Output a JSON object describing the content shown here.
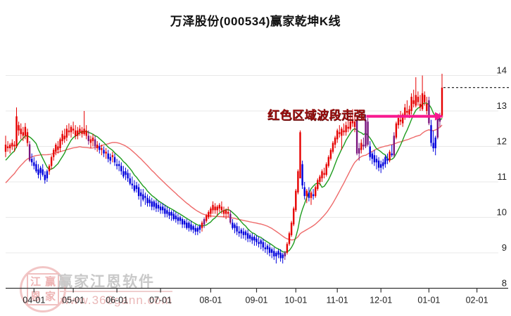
{
  "title": "万泽股份(000534)赢家乾坤K线",
  "annotation": {
    "text": "红色区域波段走强",
    "color": "#9b0f0f"
  },
  "watermark": {
    "brand": "赢家江恩软件",
    "url": "www.360gann.com",
    "seal_chars": [
      "江",
      "赢",
      "恩",
      "家"
    ]
  },
  "axes": {
    "y_ticks": [
      14,
      13,
      12,
      11,
      10,
      9,
      8
    ],
    "x_ticks": [
      {
        "label": "04-01",
        "i": 13
      },
      {
        "label": "05-01",
        "i": 31
      },
      {
        "label": "06-01",
        "i": 51
      },
      {
        "label": "07-01",
        "i": 71
      },
      {
        "label": "08-01",
        "i": 94
      },
      {
        "label": "09-01",
        "i": 115
      },
      {
        "label": "10-01",
        "i": 133
      },
      {
        "label": "11-01",
        "i": 152
      },
      {
        "label": "12-01",
        "i": 172
      },
      {
        "label": "01-01",
        "i": 194
      },
      {
        "label": "02-01",
        "i": 216
      }
    ]
  },
  "chart_data": {
    "type": "candlestick",
    "title": "万泽股份(000534)赢家乾坤K线",
    "ylim": [
      8,
      14
    ],
    "x_range_labels": [
      "04-01",
      "05-01",
      "06-01",
      "07-01",
      "08-01",
      "09-01",
      "10-01",
      "11-01",
      "12-01",
      "01-01",
      "02-01"
    ],
    "legend": "none",
    "grid": "horizontal",
    "colors": {
      "up": "#e60000",
      "down": "#0000dd",
      "transition": "#7a157f",
      "ma_short": "#1e9c1e",
      "ma_long": "#ee6a6a",
      "resistance": "#f8188f",
      "last_price": "#111111",
      "grid_line": "#e8e8e8",
      "axis": "#333333",
      "label": "#222222"
    },
    "candles": [
      [
        11.85,
        12.3,
        11.7,
        12.05,
        "r"
      ],
      [
        12.0,
        12.15,
        11.85,
        11.95,
        "r"
      ],
      [
        11.95,
        12.1,
        11.8,
        12.05,
        "r"
      ],
      [
        12.0,
        12.2,
        11.9,
        12.1,
        "r"
      ],
      [
        12.05,
        12.15,
        11.85,
        12.0,
        "r"
      ],
      [
        12.0,
        13.1,
        11.95,
        12.85,
        "r"
      ],
      [
        12.45,
        12.7,
        12.3,
        12.6,
        "r"
      ],
      [
        12.35,
        12.65,
        12.2,
        12.5,
        "r"
      ],
      [
        12.4,
        12.55,
        12.15,
        12.3,
        "r"
      ],
      [
        12.3,
        12.66,
        12.2,
        12.55,
        "r"
      ],
      [
        12.4,
        12.5,
        12.0,
        12.1,
        "r"
      ],
      [
        12.06,
        12.15,
        11.56,
        11.6,
        "p"
      ],
      [
        11.65,
        11.8,
        11.45,
        11.55,
        "b"
      ],
      [
        11.55,
        11.7,
        11.35,
        11.45,
        "b"
      ],
      [
        11.5,
        11.6,
        11.25,
        11.3,
        "b"
      ],
      [
        11.35,
        11.5,
        11.1,
        11.2,
        "b"
      ],
      [
        11.25,
        11.45,
        11.05,
        11.4,
        "b"
      ],
      [
        11.35,
        11.5,
        11.15,
        11.2,
        "b"
      ],
      [
        11.2,
        11.3,
        10.95,
        11.05,
        "b"
      ],
      [
        11.1,
        11.35,
        11.0,
        11.3,
        "b"
      ],
      [
        11.3,
        11.5,
        11.2,
        11.45,
        "r"
      ],
      [
        11.45,
        11.75,
        11.35,
        11.7,
        "r"
      ],
      [
        11.7,
        11.95,
        11.6,
        11.9,
        "r"
      ],
      [
        11.85,
        12.1,
        11.75,
        12.05,
        "r"
      ],
      [
        12.0,
        12.15,
        11.8,
        11.9,
        "r"
      ],
      [
        11.95,
        12.25,
        11.85,
        12.2,
        "r"
      ],
      [
        12.15,
        12.45,
        12.05,
        12.35,
        "r"
      ],
      [
        12.3,
        12.5,
        12.1,
        12.2,
        "r"
      ],
      [
        12.25,
        12.6,
        12.15,
        12.5,
        "r"
      ],
      [
        12.45,
        12.65,
        12.3,
        12.4,
        "r"
      ],
      [
        12.4,
        12.6,
        12.25,
        12.55,
        "r"
      ],
      [
        12.5,
        12.7,
        12.35,
        12.45,
        "r"
      ],
      [
        12.45,
        12.6,
        12.2,
        12.3,
        "r"
      ],
      [
        12.3,
        12.55,
        12.2,
        12.45,
        "r"
      ],
      [
        12.4,
        12.6,
        12.3,
        12.5,
        "r"
      ],
      [
        12.45,
        12.55,
        12.25,
        12.35,
        "r"
      ],
      [
        12.35,
        13.0,
        12.3,
        12.5,
        "r"
      ],
      [
        12.45,
        12.6,
        12.2,
        12.3,
        "r"
      ],
      [
        12.3,
        12.45,
        12.05,
        12.15,
        "p"
      ],
      [
        12.1,
        12.3,
        11.95,
        12.2,
        "r"
      ],
      [
        12.15,
        12.35,
        12.0,
        12.25,
        "r"
      ],
      [
        12.2,
        12.3,
        11.9,
        12.0,
        "p"
      ],
      [
        11.95,
        12.15,
        11.85,
        12.05,
        "r"
      ],
      [
        12.0,
        12.1,
        11.8,
        11.9,
        "b"
      ],
      [
        11.9,
        12.05,
        11.75,
        11.95,
        "r"
      ],
      [
        11.9,
        12.0,
        11.7,
        11.8,
        "b"
      ],
      [
        11.8,
        11.95,
        11.65,
        11.85,
        "r"
      ],
      [
        11.8,
        11.9,
        11.55,
        11.65,
        "b"
      ],
      [
        11.6,
        11.8,
        11.5,
        11.7,
        "b"
      ],
      [
        11.7,
        11.85,
        11.55,
        11.75,
        "r"
      ],
      [
        11.7,
        11.8,
        11.45,
        11.55,
        "b"
      ],
      [
        11.5,
        11.65,
        11.35,
        11.45,
        "b"
      ],
      [
        11.45,
        11.6,
        11.3,
        11.5,
        "b"
      ],
      [
        11.45,
        11.55,
        11.2,
        11.3,
        "b"
      ],
      [
        11.3,
        11.45,
        11.1,
        11.15,
        "b"
      ],
      [
        11.2,
        11.4,
        11.05,
        11.3,
        "b"
      ],
      [
        11.25,
        11.35,
        11.0,
        11.1,
        "b"
      ],
      [
        11.1,
        11.25,
        10.9,
        10.95,
        "b"
      ],
      [
        10.95,
        11.15,
        10.8,
        10.9,
        "b"
      ],
      [
        10.9,
        11.05,
        10.7,
        10.75,
        "b"
      ],
      [
        10.8,
        11.0,
        10.7,
        10.9,
        "b"
      ],
      [
        10.85,
        10.95,
        10.5,
        10.6,
        "b"
      ],
      [
        10.6,
        10.8,
        10.3,
        10.7,
        "b"
      ],
      [
        10.65,
        10.8,
        10.45,
        10.5,
        "b"
      ],
      [
        10.55,
        10.7,
        10.35,
        10.6,
        "b"
      ],
      [
        10.55,
        10.65,
        10.3,
        10.4,
        "b"
      ],
      [
        10.4,
        10.6,
        10.3,
        10.5,
        "b"
      ],
      [
        10.45,
        10.55,
        10.2,
        10.3,
        "b"
      ],
      [
        10.3,
        10.5,
        10.2,
        10.45,
        "b"
      ],
      [
        10.4,
        10.5,
        10.15,
        10.25,
        "b"
      ],
      [
        10.25,
        10.45,
        10.15,
        10.35,
        "b"
      ],
      [
        10.3,
        10.4,
        10.1,
        10.2,
        "b"
      ],
      [
        10.2,
        10.4,
        10.1,
        10.3,
        "b"
      ],
      [
        10.25,
        10.35,
        10.0,
        10.1,
        "b"
      ],
      [
        10.1,
        10.3,
        10.0,
        10.2,
        "b"
      ],
      [
        10.15,
        10.25,
        9.95,
        10.05,
        "b"
      ],
      [
        10.05,
        10.2,
        9.9,
        10.15,
        "b"
      ],
      [
        10.1,
        10.2,
        9.9,
        9.95,
        "b"
      ],
      [
        9.95,
        10.15,
        9.85,
        10.05,
        "b"
      ],
      [
        10.0,
        10.1,
        9.8,
        9.9,
        "b"
      ],
      [
        9.9,
        10.05,
        9.8,
        10.0,
        "b"
      ],
      [
        9.95,
        10.0,
        9.7,
        9.8,
        "b"
      ],
      [
        9.8,
        9.95,
        9.7,
        9.9,
        "b"
      ],
      [
        9.85,
        9.95,
        9.65,
        9.7,
        "b"
      ],
      [
        9.7,
        9.9,
        9.6,
        9.85,
        "b"
      ],
      [
        9.8,
        9.9,
        9.6,
        9.65,
        "b"
      ],
      [
        9.65,
        9.8,
        9.55,
        9.75,
        "b"
      ],
      [
        9.7,
        9.8,
        9.5,
        9.6,
        "b"
      ],
      [
        9.6,
        9.75,
        9.5,
        9.7,
        "b"
      ],
      [
        9.65,
        9.8,
        9.55,
        9.75,
        "b"
      ],
      [
        9.7,
        9.9,
        9.6,
        9.85,
        "r"
      ],
      [
        9.8,
        10.0,
        9.7,
        9.95,
        "p"
      ],
      [
        9.9,
        10.1,
        9.85,
        10.05,
        "r"
      ],
      [
        10.0,
        10.2,
        9.95,
        10.15,
        "r"
      ],
      [
        10.1,
        10.3,
        10.0,
        10.25,
        "r"
      ],
      [
        10.2,
        10.45,
        10.1,
        10.35,
        "r"
      ],
      [
        10.3,
        10.4,
        10.1,
        10.2,
        "r"
      ],
      [
        10.2,
        10.35,
        10.05,
        10.3,
        "r"
      ],
      [
        10.25,
        10.4,
        10.15,
        10.35,
        "r"
      ],
      [
        10.3,
        10.45,
        10.1,
        10.2,
        "r"
      ],
      [
        10.2,
        10.3,
        10.0,
        10.1,
        "r"
      ],
      [
        10.1,
        10.25,
        9.95,
        10.2,
        "r"
      ],
      [
        10.15,
        10.3,
        10.0,
        10.1,
        "r"
      ],
      [
        10.1,
        10.2,
        9.8,
        9.85,
        "p"
      ],
      [
        9.85,
        9.95,
        9.65,
        9.7,
        "b"
      ],
      [
        9.7,
        9.85,
        9.55,
        9.8,
        "b"
      ],
      [
        9.75,
        9.85,
        9.5,
        9.6,
        "b"
      ],
      [
        9.6,
        9.75,
        9.45,
        9.55,
        "b"
      ],
      [
        9.55,
        9.7,
        9.4,
        9.65,
        "b"
      ],
      [
        9.6,
        9.7,
        9.4,
        9.5,
        "b"
      ],
      [
        9.5,
        9.65,
        9.35,
        9.6,
        "b"
      ],
      [
        9.55,
        9.65,
        9.3,
        9.4,
        "b"
      ],
      [
        9.4,
        9.55,
        9.3,
        9.5,
        "b"
      ],
      [
        9.45,
        9.55,
        9.25,
        9.35,
        "b"
      ],
      [
        9.35,
        9.5,
        9.2,
        9.45,
        "b"
      ],
      [
        9.4,
        9.5,
        9.2,
        9.3,
        "b"
      ],
      [
        9.3,
        9.45,
        9.15,
        9.25,
        "b"
      ],
      [
        9.25,
        9.4,
        9.1,
        9.35,
        "b"
      ],
      [
        9.3,
        9.4,
        9.05,
        9.15,
        "b"
      ],
      [
        9.15,
        9.3,
        9.0,
        9.1,
        "b"
      ],
      [
        9.1,
        9.25,
        8.95,
        9.2,
        "b"
      ],
      [
        9.15,
        9.25,
        8.9,
        9.0,
        "b"
      ],
      [
        9.0,
        9.15,
        8.85,
        9.1,
        "b"
      ],
      [
        9.05,
        9.15,
        8.8,
        8.9,
        "b"
      ],
      [
        8.9,
        9.05,
        8.7,
        9.0,
        "b"
      ],
      [
        8.95,
        9.1,
        8.85,
        9.05,
        "b"
      ],
      [
        9.0,
        9.1,
        8.75,
        8.85,
        "b"
      ],
      [
        8.85,
        9.0,
        8.7,
        8.95,
        "b"
      ],
      [
        8.9,
        9.05,
        8.8,
        9.0,
        "p"
      ],
      [
        9.0,
        9.3,
        8.95,
        9.25,
        "r"
      ],
      [
        9.25,
        9.6,
        9.2,
        9.55,
        "r"
      ],
      [
        9.5,
        9.9,
        9.45,
        9.85,
        "r"
      ],
      [
        9.8,
        10.3,
        9.75,
        10.25,
        "r"
      ],
      [
        10.2,
        10.8,
        10.15,
        10.75,
        "r"
      ],
      [
        10.7,
        11.35,
        10.65,
        11.3,
        "r"
      ],
      [
        11.1,
        12.45,
        11.1,
        12.4,
        "r"
      ],
      [
        11.5,
        11.6,
        10.8,
        10.9,
        "b"
      ],
      [
        10.85,
        11.0,
        10.5,
        10.6,
        "b"
      ],
      [
        10.6,
        10.8,
        10.4,
        10.75,
        "r"
      ],
      [
        10.7,
        10.85,
        10.45,
        10.55,
        "b"
      ],
      [
        10.55,
        10.75,
        10.35,
        10.7,
        "r"
      ],
      [
        10.65,
        10.8,
        10.5,
        10.6,
        "b"
      ],
      [
        10.6,
        10.9,
        10.55,
        10.85,
        "r"
      ],
      [
        10.8,
        11.1,
        10.75,
        11.05,
        "r"
      ],
      [
        11.0,
        11.2,
        10.9,
        11.15,
        "r"
      ],
      [
        11.1,
        11.35,
        11.0,
        11.3,
        "r"
      ],
      [
        11.25,
        11.4,
        11.1,
        11.2,
        "r"
      ],
      [
        11.2,
        11.55,
        11.15,
        11.5,
        "r"
      ],
      [
        11.45,
        11.75,
        11.4,
        11.7,
        "r"
      ],
      [
        11.65,
        11.95,
        11.6,
        11.9,
        "r"
      ],
      [
        11.85,
        12.15,
        11.8,
        12.1,
        "r"
      ],
      [
        12.05,
        12.3,
        11.95,
        12.25,
        "r"
      ],
      [
        12.2,
        12.5,
        12.1,
        12.45,
        "r"
      ],
      [
        12.4,
        12.6,
        12.25,
        12.35,
        "r"
      ],
      [
        12.3,
        12.55,
        11.9,
        12.5,
        "r"
      ],
      [
        12.45,
        12.65,
        12.3,
        12.4,
        "r"
      ],
      [
        12.4,
        12.7,
        12.3,
        12.6,
        "r"
      ],
      [
        12.55,
        12.75,
        12.4,
        12.5,
        "r"
      ],
      [
        12.5,
        12.9,
        12.45,
        12.7,
        "r"
      ],
      [
        12.65,
        13.05,
        12.55,
        12.75,
        "r"
      ],
      [
        12.7,
        12.85,
        12.4,
        12.55,
        "r"
      ],
      [
        12.75,
        12.85,
        11.75,
        11.8,
        "p"
      ],
      [
        11.8,
        12.1,
        11.6,
        11.95,
        "p"
      ],
      [
        11.9,
        12.2,
        11.8,
        12.1,
        "r"
      ],
      [
        12.05,
        12.25,
        11.9,
        12.0,
        "p"
      ],
      [
        12.0,
        12.9,
        11.95,
        12.75,
        "p"
      ],
      [
        12.7,
        12.8,
        12.0,
        12.05,
        "p"
      ],
      [
        12.0,
        12.15,
        11.6,
        11.7,
        "b"
      ],
      [
        11.65,
        11.85,
        11.5,
        11.8,
        "b"
      ],
      [
        11.75,
        11.9,
        11.45,
        11.55,
        "b"
      ],
      [
        11.55,
        11.75,
        11.35,
        11.65,
        "b"
      ],
      [
        11.6,
        11.7,
        11.3,
        11.4,
        "b"
      ],
      [
        11.4,
        11.6,
        11.25,
        11.5,
        "b"
      ],
      [
        11.45,
        11.65,
        11.35,
        11.55,
        "b"
      ],
      [
        11.5,
        11.75,
        11.4,
        11.7,
        "b"
      ],
      [
        11.65,
        11.8,
        11.5,
        11.6,
        "b"
      ],
      [
        11.6,
        11.9,
        11.55,
        11.85,
        "r"
      ],
      [
        11.8,
        12.05,
        11.7,
        11.75,
        "b"
      ],
      [
        11.75,
        12.4,
        11.7,
        12.3,
        "p"
      ],
      [
        12.25,
        12.7,
        12.2,
        12.65,
        "r"
      ],
      [
        12.6,
        12.9,
        12.5,
        12.8,
        "r"
      ],
      [
        12.75,
        13.0,
        12.6,
        12.7,
        "r"
      ],
      [
        12.65,
        12.95,
        12.55,
        12.9,
        "r"
      ],
      [
        12.85,
        13.2,
        12.75,
        13.1,
        "r"
      ],
      [
        13.0,
        13.3,
        12.85,
        12.95,
        "r"
      ],
      [
        12.9,
        13.15,
        12.8,
        13.05,
        "r"
      ],
      [
        13.0,
        13.5,
        12.9,
        13.4,
        "r"
      ],
      [
        13.3,
        13.6,
        13.1,
        13.2,
        "r"
      ],
      [
        13.15,
        13.95,
        13.1,
        13.45,
        "r"
      ],
      [
        13.4,
        13.55,
        13.15,
        13.25,
        "r"
      ],
      [
        13.2,
        13.45,
        13.0,
        13.1,
        "r"
      ],
      [
        13.05,
        14.0,
        13.0,
        13.5,
        "r"
      ],
      [
        13.45,
        13.55,
        13.15,
        13.25,
        "r"
      ],
      [
        13.2,
        13.4,
        12.9,
        13.0,
        "r"
      ],
      [
        13.3,
        13.4,
        12.6,
        12.65,
        "p"
      ],
      [
        12.6,
        12.75,
        12.0,
        12.1,
        "b"
      ],
      [
        12.1,
        12.45,
        11.85,
        11.95,
        "b"
      ],
      [
        11.95,
        12.3,
        11.75,
        12.25,
        "b"
      ],
      [
        12.25,
        12.9,
        12.2,
        12.85,
        "p"
      ],
      [
        12.8,
        12.95,
        12.55,
        12.7,
        "p"
      ],
      [
        12.87,
        14.05,
        12.8,
        13.66,
        "r"
      ]
    ],
    "overlays": {
      "ma_short": {
        "window": 10,
        "seed_from": 11.2,
        "seed_to": 11.85
      },
      "ma_long": {
        "window": 30,
        "seed_from": 9.9,
        "seed_to": 11.9
      },
      "resistance_line": {
        "price": 12.85,
        "from_candle": 165,
        "to_candle": 199
      },
      "last_price_line": {
        "price": 13.66,
        "style": "dashed"
      }
    }
  }
}
